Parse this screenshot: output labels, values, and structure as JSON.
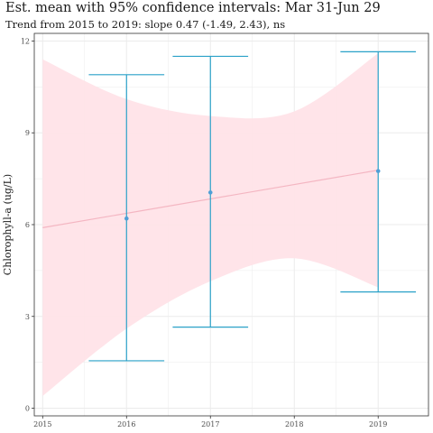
{
  "chart_data": {
    "type": "line",
    "title": "Est. mean with 95% confidence intervals: Mar 31-Jun 29",
    "subtitle": "Trend from 2015 to 2019: slope 0.47 (-1.49, 2.43), ns",
    "xlabel": "",
    "ylabel": "Chlorophyll-a (ug/L)",
    "xlim": [
      2014.9,
      2019.6
    ],
    "ylim": [
      -0.25,
      12.25
    ],
    "x_ticks": [
      2015,
      2016,
      2017,
      2018,
      2019
    ],
    "y_ticks": [
      0,
      3,
      6,
      9,
      12
    ],
    "grid": true,
    "points": [
      {
        "x": 2016,
        "mean": 6.2,
        "lower": 1.55,
        "upper": 10.9
      },
      {
        "x": 2017,
        "mean": 7.05,
        "lower": 2.65,
        "upper": 11.5
      },
      {
        "x": 2019,
        "mean": 7.75,
        "lower": 3.8,
        "upper": 11.65
      }
    ],
    "trend": {
      "x": [
        2015,
        2016,
        2017,
        2018,
        2019
      ],
      "fit": [
        5.9,
        6.37,
        6.84,
        7.31,
        7.78
      ],
      "lower": [
        0.4,
        2.6,
        4.15,
        4.9,
        3.95
      ],
      "upper": [
        11.4,
        10.1,
        9.55,
        9.7,
        11.6
      ]
    },
    "colors": {
      "points": "#4f9fd6",
      "errorbars": "#2aa1c8",
      "trend_line": "#f4b6c2",
      "ribbon": "#ffe3e8",
      "grid": "#ebebeb",
      "panel_border": "#333333"
    }
  }
}
